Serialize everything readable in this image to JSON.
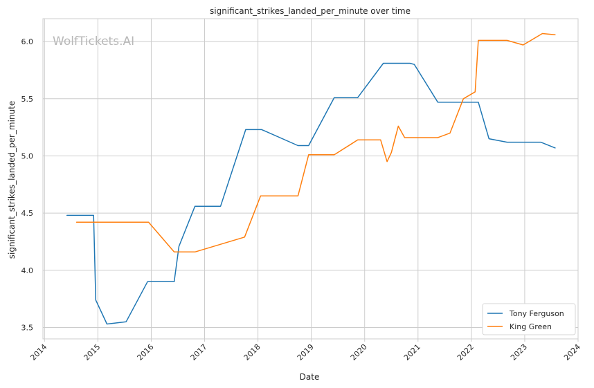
{
  "chart_data": {
    "type": "line",
    "title": "significant_strikes_landed_per_minute over time",
    "xlabel": "Date",
    "ylabel": "significant_strikes_landed_per_minute",
    "watermark": "WolfTickets.AI",
    "xlim": [
      2013.97,
      2024.0
    ],
    "ylim": [
      3.4,
      6.2
    ],
    "x_ticks": [
      2014,
      2015,
      2016,
      2017,
      2018,
      2019,
      2020,
      2021,
      2022,
      2023,
      2024
    ],
    "y_ticks": [
      3.5,
      4.0,
      4.5,
      5.0,
      5.5,
      6.0
    ],
    "y_tick_labels": [
      "3.5",
      "4.0",
      "4.5",
      "5.0",
      "5.5",
      "6.0"
    ],
    "grid": true,
    "legend_position": "bottom-right",
    "series": [
      {
        "name": "Tony Ferguson",
        "color": "#1f77b4",
        "x": [
          2014.42,
          2014.92,
          2014.96,
          2015.17,
          2015.53,
          2015.93,
          2016.43,
          2016.52,
          2016.82,
          2017.3,
          2017.77,
          2018.07,
          2018.75,
          2018.95,
          2019.43,
          2019.87,
          2020.35,
          2020.85,
          2020.93,
          2021.37,
          2022.13,
          2022.33,
          2022.67,
          2023.3,
          2023.57
        ],
        "y": [
          4.48,
          4.48,
          3.74,
          3.53,
          3.55,
          3.9,
          3.9,
          4.21,
          4.56,
          4.56,
          5.23,
          5.23,
          5.09,
          5.09,
          5.51,
          5.51,
          5.81,
          5.81,
          5.8,
          5.47,
          5.47,
          5.15,
          5.12,
          5.12,
          5.07
        ]
      },
      {
        "name": "King Green",
        "color": "#ff7f0e",
        "x": [
          2014.6,
          2015.95,
          2016.43,
          2016.82,
          2017.75,
          2018.05,
          2018.75,
          2018.95,
          2019.43,
          2019.87,
          2020.3,
          2020.42,
          2020.5,
          2020.63,
          2020.75,
          2021.37,
          2021.6,
          2021.85,
          2022.07,
          2022.13,
          2022.67,
          2022.97,
          2023.33,
          2023.57
        ],
        "y": [
          4.42,
          4.42,
          4.16,
          4.16,
          4.29,
          4.65,
          4.65,
          5.01,
          5.01,
          5.14,
          5.14,
          4.95,
          5.03,
          5.26,
          5.16,
          5.16,
          5.2,
          5.5,
          5.56,
          6.01,
          6.01,
          5.97,
          6.07,
          6.06
        ]
      }
    ]
  }
}
